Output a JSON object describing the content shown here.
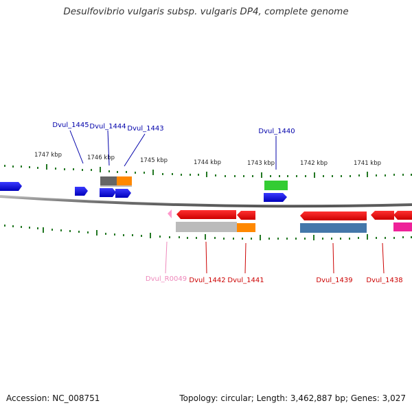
{
  "title": "Desulfovibrio vulgaris subsp. vulgaris DP4, complete genome",
  "footer": {
    "accession": "Accession: NC_008751",
    "topology": "Topology: circular; Length: 3,462,887 bp; Genes: 3,027"
  },
  "scale": {
    "unit": "kbp",
    "labels": [
      "1747 kbp",
      "1746 kbp",
      "1745 kbp",
      "1744 kbp",
      "1743 kbp",
      "1742 kbp",
      "1741 kbp"
    ]
  },
  "colors": {
    "plus_strand_label": "#0000aa",
    "minus_strand_label": "#cc0000",
    "rna_label": "#ee88bb",
    "backbone": "#888888",
    "tick": "#227722"
  },
  "gene_labels": {
    "top": [
      "Dvul_1445",
      "Dvul_1444",
      "Dvul_1443",
      "Dvul_1440"
    ],
    "bottom": [
      "Dvul_R0049",
      "Dvul_1442",
      "Dvul_1441",
      "Dvul_1439",
      "Dvul_1438"
    ]
  }
}
